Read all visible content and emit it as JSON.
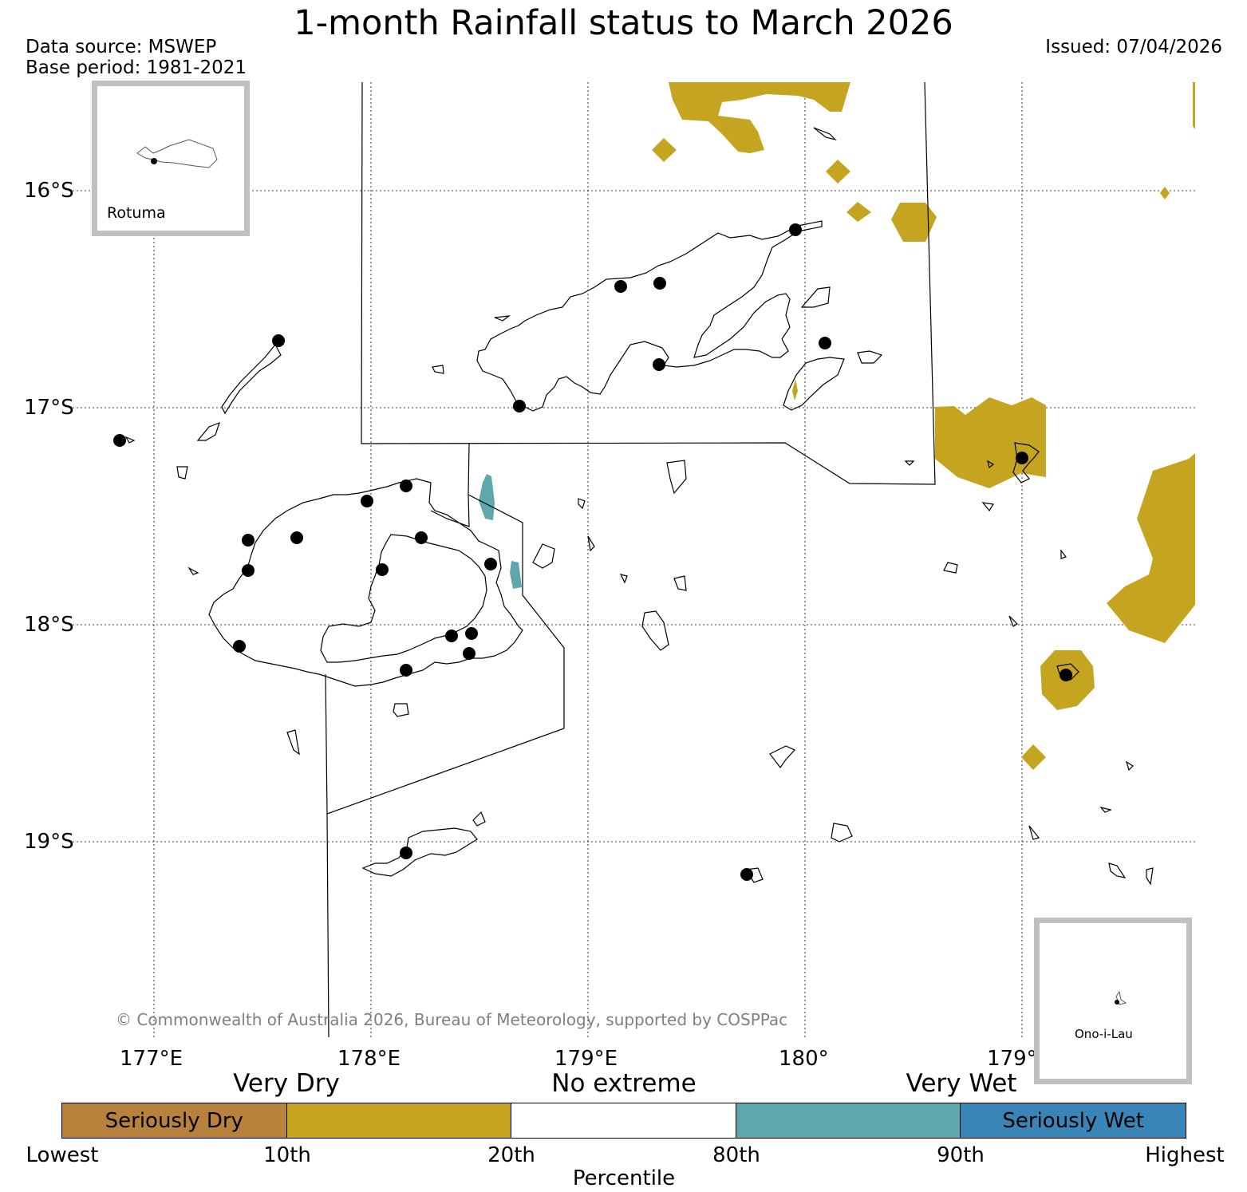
{
  "title": "1-month Rainfall status to March 2026",
  "data_source": "Data source: MSWEP",
  "base_period": "Base period: 1981-2021",
  "issued": "Issued: 07/04/2026",
  "lat_labels": [
    "16°S",
    "17°S",
    "18°S",
    "19°S"
  ],
  "lon_labels": [
    "177°E",
    "178°E",
    "179°E",
    "180°",
    "179°"
  ],
  "insets": {
    "rotuma": "Rotuma",
    "ono": "Ono-i-Lau"
  },
  "copyright": "© Commonwealth of Australia 2026, Bureau of Meteorology, supported by COSPPac",
  "legend": {
    "category_labels": [
      "Very Dry",
      "No extreme",
      "Very Wet"
    ],
    "segments": [
      {
        "label": "Seriously Dry",
        "color": "#b8823c"
      },
      {
        "label": "",
        "color": "#c5a41f"
      },
      {
        "label": "",
        "color": "#ffffff"
      },
      {
        "label": "",
        "color": "#5ea8ad"
      },
      {
        "label": "Seriously Wet",
        "color": "#3a85b8"
      }
    ],
    "percentile_labels": [
      "Lowest",
      "10th",
      "20th",
      "80th",
      "90th",
      "Highest"
    ],
    "axis_title": "Percentile"
  },
  "colors": {
    "very_dry": "#c5a41f",
    "very_wet": "#5ea8ad",
    "inset_border": "#c0c0c0",
    "copyright": "#808080"
  }
}
